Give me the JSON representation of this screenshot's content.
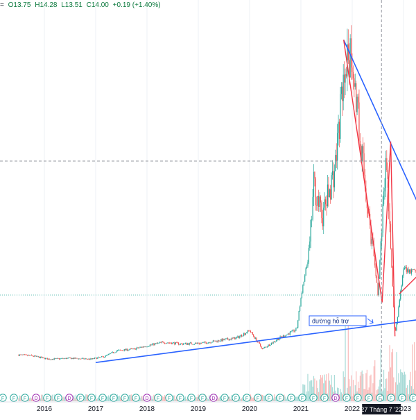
{
  "header": {
    "open": "O13.75",
    "high": "H14.28",
    "low": "L13.51",
    "close": "C14.00",
    "change": "+0.19 (+1.40%)",
    "marker": "="
  },
  "annotation": {
    "support_label": "đường hỗ trợ",
    "crosshair_date": "27 Tháng 7 '22"
  },
  "colors": {
    "up": "#26a69a",
    "down": "#ef5350",
    "trend_blue": "#2962ff",
    "wave_red": "#f23645",
    "text": "#131722",
    "change_green": "#0c7a3e"
  },
  "chart_data": {
    "type": "candlestick",
    "x_axis": {
      "tick_labels": [
        "2016",
        "2017",
        "2018",
        "2019",
        "2020",
        "2021",
        "2022",
        "2023"
      ]
    },
    "price_path": [
      {
        "date": "2015-07",
        "price": 3.8
      },
      {
        "date": "2015-10",
        "price": 3.7
      },
      {
        "date": "2016-02",
        "price": 3.3
      },
      {
        "date": "2016-07",
        "price": 3.4
      },
      {
        "date": "2016-12",
        "price": 3.3
      },
      {
        "date": "2017-03",
        "price": 3.6
      },
      {
        "date": "2017-06",
        "price": 4.3
      },
      {
        "date": "2017-10",
        "price": 4.5
      },
      {
        "date": "2018-02",
        "price": 5.0
      },
      {
        "date": "2018-05",
        "price": 5.3
      },
      {
        "date": "2018-09",
        "price": 5.1
      },
      {
        "date": "2019-02",
        "price": 5.2
      },
      {
        "date": "2019-06",
        "price": 5.5
      },
      {
        "date": "2019-10",
        "price": 5.8
      },
      {
        "date": "2020-01",
        "price": 6.7
      },
      {
        "date": "2020-04",
        "price": 4.5
      },
      {
        "date": "2020-08",
        "price": 5.8
      },
      {
        "date": "2020-12",
        "price": 6.8
      },
      {
        "date": "2021-01",
        "price": 10.5
      },
      {
        "date": "2021-03",
        "price": 16.0
      },
      {
        "date": "2021-04",
        "price": 24.0
      },
      {
        "date": "2021-06",
        "price": 20.0
      },
      {
        "date": "2021-09",
        "price": 26.0
      },
      {
        "date": "2021-11",
        "price": 37.0
      },
      {
        "date": "2022-01",
        "price": 39.0
      },
      {
        "date": "2022-04",
        "price": 24.0
      },
      {
        "date": "2022-07",
        "price": 11.0
      },
      {
        "date": "2022-09",
        "price": 27.0
      },
      {
        "date": "2022-11",
        "price": 6.0
      },
      {
        "date": "2023-01",
        "price": 14.0
      },
      {
        "date": "2023-04",
        "price": 13.5
      }
    ],
    "support_trendline": [
      {
        "date": "2017-01",
        "price": 2.9
      },
      {
        "date": "2023-05",
        "price": 8.0
      }
    ],
    "resistance_trendline": [
      {
        "date": "2021-11",
        "price": 41.0
      },
      {
        "date": "2023-05",
        "price": 21.0
      }
    ],
    "wave_lines": [
      [
        {
          "date": "2021-11",
          "price": 41.0
        },
        {
          "date": "2022-08",
          "price": 10.0
        },
        {
          "date": "2022-10",
          "price": 29.0
        },
        {
          "date": "2022-11",
          "price": 6.0
        }
      ],
      [
        {
          "date": "2022-12",
          "price": 11.0
        },
        {
          "date": "2023-04",
          "price": 13.0
        }
      ]
    ],
    "dividend_markers": [
      "F",
      "F",
      "F",
      "D",
      "F",
      "F",
      "D",
      "F",
      "F",
      "F",
      "F",
      "F",
      "F",
      "D",
      "F",
      "F",
      "F",
      "F",
      "F",
      "D",
      "F",
      "F",
      "F",
      "F",
      "F",
      "F",
      "F",
      "F",
      "F",
      "F",
      "D",
      "F",
      "F",
      "F",
      "F",
      "F",
      "F",
      "F"
    ]
  }
}
